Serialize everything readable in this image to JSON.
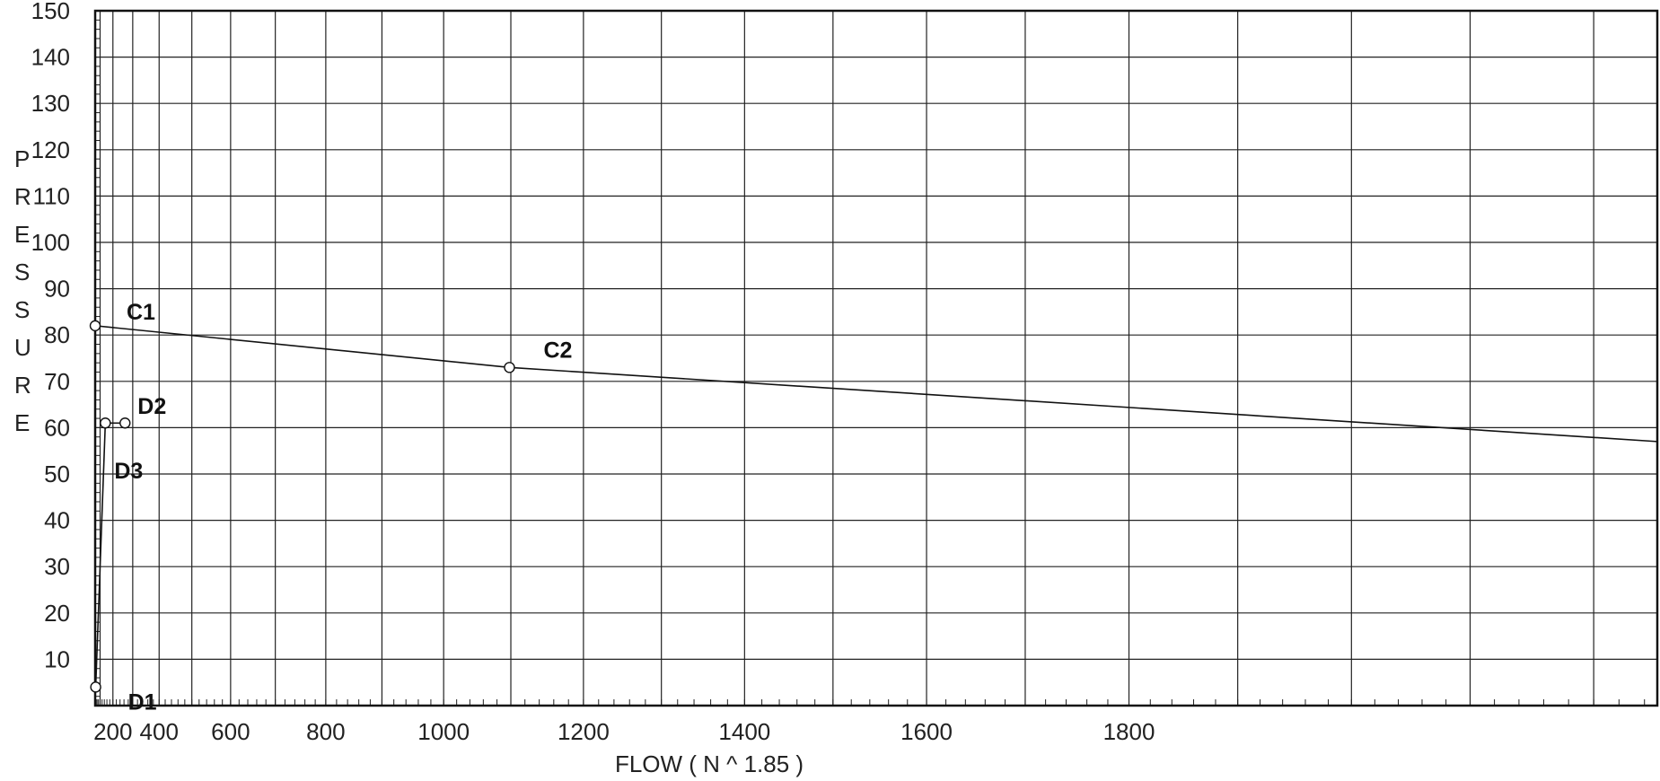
{
  "chart_data": {
    "type": "line",
    "title": "",
    "xlabel": "FLOW ( N ^ 1.85 )",
    "ylabel": "PRESSURE",
    "x_scale": "power 1.85",
    "xlim": [
      0,
      2250
    ],
    "ylim": [
      0,
      150
    ],
    "x_ticks": [
      200,
      400,
      600,
      800,
      1000,
      1200,
      1400,
      1600,
      1800
    ],
    "y_ticks": [
      10,
      20,
      30,
      40,
      50,
      60,
      70,
      80,
      90,
      100,
      110,
      120,
      130,
      140,
      150
    ],
    "grid": true,
    "legend": "none",
    "series": [
      {
        "points": [
          {
            "label": "C1",
            "x": 0,
            "y": 82
          },
          {
            "label": "C2",
            "x": 1098,
            "y": 73
          }
        ],
        "line_end": {
          "x": 2250,
          "y": 57
        }
      },
      {
        "points": [
          {
            "label": "D1",
            "x": 30,
            "y": 4
          },
          {
            "label": "D3",
            "x": 148,
            "y": 61
          },
          {
            "label": "D2",
            "x": 265,
            "y": 61
          }
        ]
      }
    ]
  }
}
